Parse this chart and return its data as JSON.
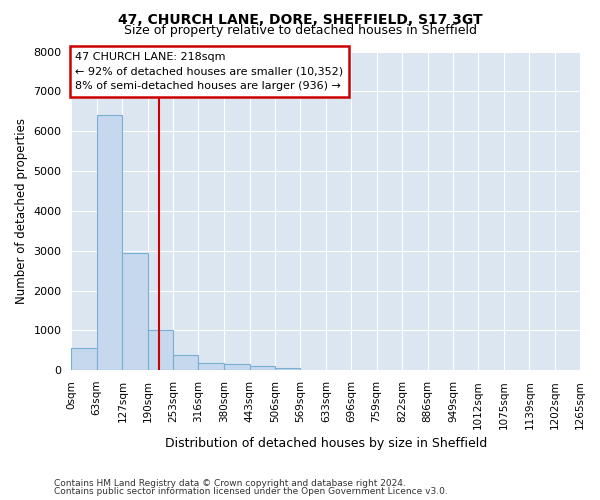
{
  "title1": "47, CHURCH LANE, DORE, SHEFFIELD, S17 3GT",
  "title2": "Size of property relative to detached houses in Sheffield",
  "xlabel": "Distribution of detached houses by size in Sheffield",
  "ylabel": "Number of detached properties",
  "footer1": "Contains HM Land Registry data © Crown copyright and database right 2024.",
  "footer2": "Contains public sector information licensed under the Open Government Licence v3.0.",
  "annotation_line1": "47 CHURCH LANE: 218sqm",
  "annotation_line2": "← 92% of detached houses are smaller (10,352)",
  "annotation_line3": "8% of semi-detached houses are larger (936) →",
  "property_sqm": 218,
  "bin_edges": [
    0,
    63,
    127,
    190,
    253,
    316,
    380,
    443,
    506,
    569,
    633,
    696,
    759,
    822,
    886,
    949,
    1012,
    1075,
    1139,
    1202,
    1265
  ],
  "bar_values": [
    560,
    6400,
    2930,
    1000,
    380,
    190,
    150,
    100,
    60,
    0,
    0,
    0,
    0,
    0,
    0,
    0,
    0,
    0,
    0,
    0
  ],
  "bar_color": "#c5d8ee",
  "bar_edge_color": "#7aafd4",
  "vline_color": "#cc0000",
  "vline_x": 218,
  "ylim": [
    0,
    8000
  ],
  "yticks": [
    0,
    1000,
    2000,
    3000,
    4000,
    5000,
    6000,
    7000,
    8000
  ],
  "bg_color": "#dce6f1",
  "annotation_box_color": "#cc0000",
  "title1_fontsize": 10,
  "title2_fontsize": 9,
  "grid_color": "#ffffff"
}
